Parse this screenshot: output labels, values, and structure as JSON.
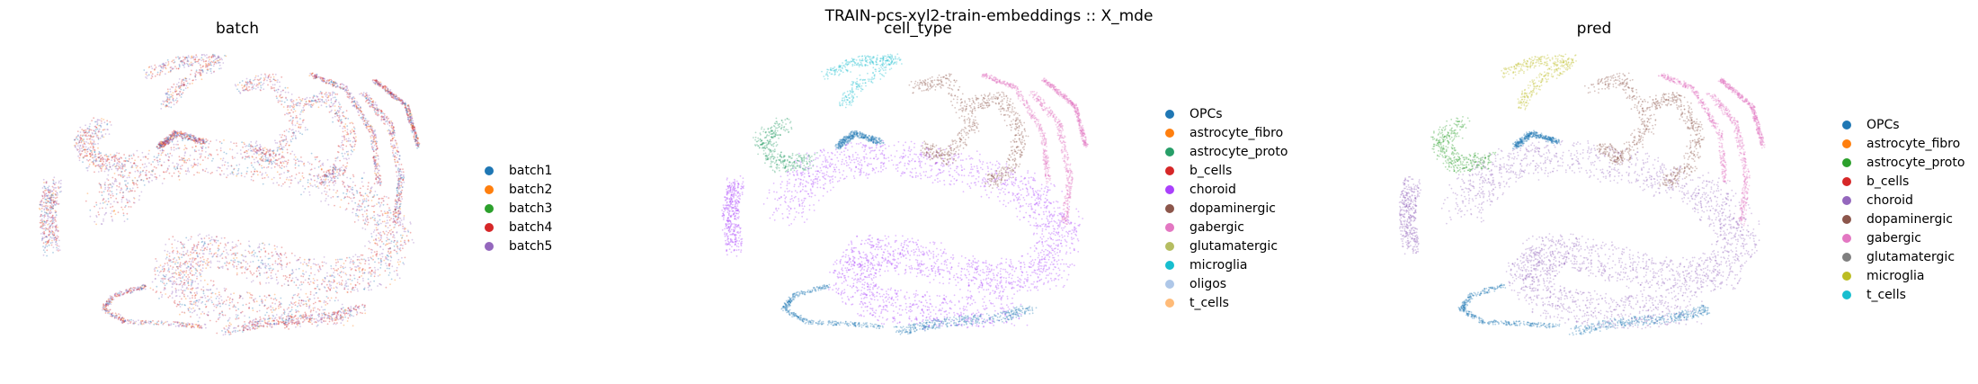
{
  "figure_title": "TRAIN-pcs-xyl2-train-embeddings :: X_mde",
  "chart_data": [
    {
      "type": "scatter",
      "title": "batch",
      "xlabel": "",
      "ylabel": "",
      "grid": false,
      "legend_position": "right",
      "dominant_category": null,
      "legend": [
        {
          "label": "batch1",
          "color": "#1f77b4"
        },
        {
          "label": "batch2",
          "color": "#ff7f0e"
        },
        {
          "label": "batch3",
          "color": "#2ca02c"
        },
        {
          "label": "batch4",
          "color": "#d62728"
        },
        {
          "label": "batch5",
          "color": "#9467bd"
        }
      ]
    },
    {
      "type": "scatter",
      "title": "cell_type",
      "xlabel": "",
      "ylabel": "",
      "grid": false,
      "legend_position": "right",
      "dominant_category": "choroid",
      "legend": [
        {
          "label": "OPCs",
          "color": "#1f77b4"
        },
        {
          "label": "astrocyte_fibro",
          "color": "#ff7f0e"
        },
        {
          "label": "astrocyte_proto",
          "color": "#279e68"
        },
        {
          "label": "b_cells",
          "color": "#d62728"
        },
        {
          "label": "choroid",
          "color": "#aa40fc"
        },
        {
          "label": "dopaminergic",
          "color": "#8c564b"
        },
        {
          "label": "gabergic",
          "color": "#e377c2"
        },
        {
          "label": "glutamatergic",
          "color": "#b5bd61"
        },
        {
          "label": "microglia",
          "color": "#17becf"
        },
        {
          "label": "oligos",
          "color": "#aec7e8"
        },
        {
          "label": "t_cells",
          "color": "#ffbb78"
        }
      ]
    },
    {
      "type": "scatter",
      "title": "pred",
      "xlabel": "",
      "ylabel": "",
      "grid": false,
      "legend_position": "right",
      "dominant_category": "choroid",
      "legend": [
        {
          "label": "OPCs",
          "color": "#1f77b4"
        },
        {
          "label": "astrocyte_fibro",
          "color": "#ff7f0e"
        },
        {
          "label": "astrocyte_proto",
          "color": "#2ca02c"
        },
        {
          "label": "b_cells",
          "color": "#d62728"
        },
        {
          "label": "choroid",
          "color": "#9467bd"
        },
        {
          "label": "dopaminergic",
          "color": "#8c564b"
        },
        {
          "label": "gabergic",
          "color": "#e377c2"
        },
        {
          "label": "glutamatergic",
          "color": "#7f7f7f"
        },
        {
          "label": "microglia",
          "color": "#bcbd22"
        },
        {
          "label": "t_cells",
          "color": "#17becf"
        }
      ]
    }
  ]
}
